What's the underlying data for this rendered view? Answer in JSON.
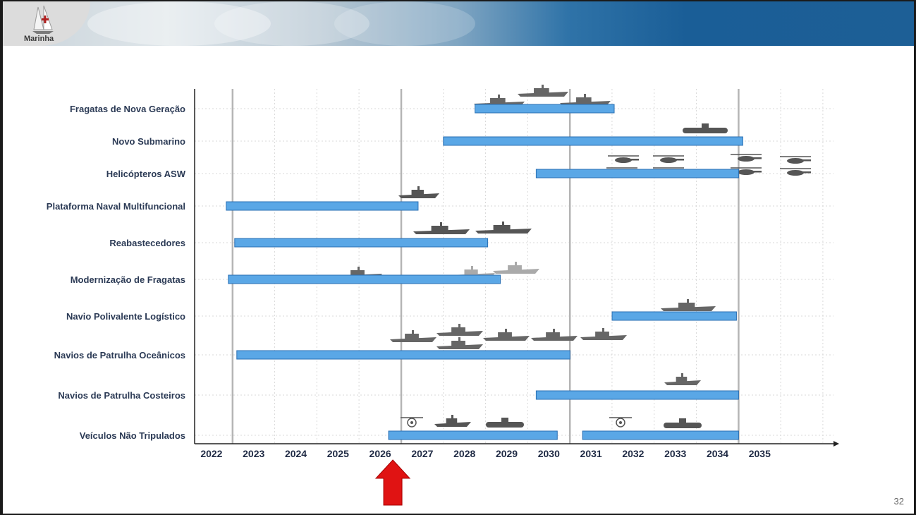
{
  "slide": {
    "logo_text": "Marinha",
    "page_number": "32"
  },
  "colors": {
    "bar": "#5aa7e6",
    "bar_border": "#2a6fb3",
    "arrow": "#e01313",
    "grid": "#d9d9d9",
    "separator": "#b5b5b5"
  },
  "chart_data": {
    "type": "gantt",
    "title": "",
    "xlabel": "",
    "ylabel": "",
    "x_ticks": [
      "2022",
      "2023",
      "2024",
      "2025",
      "2026",
      "2027",
      "2028",
      "2029",
      "2030",
      "2031",
      "2032",
      "2033",
      "2034",
      "2035"
    ],
    "xlim": [
      2022,
      2036
    ],
    "grid": true,
    "current_year_marker": 2026.3,
    "separators": [
      2022.5,
      2026.5,
      2030.5,
      2034.5
    ],
    "tasks": [
      {
        "label": "Fragatas de Nova Geração",
        "start": 2028.25,
        "end": 2031.55,
        "icon": "frigate-icon"
      },
      {
        "label": "Novo Submarino",
        "start": 2027.5,
        "end": 2034.6,
        "icon": "submarine-icon"
      },
      {
        "label": "Helicópteros ASW",
        "start": 2029.7,
        "end": 2034.5,
        "icon": "helicopter-icon"
      },
      {
        "label": "Plataforma Naval Multifuncional",
        "start": 2022.35,
        "end": 2026.9,
        "icon": "landing-ship-icon"
      },
      {
        "label": "Reabastecedores",
        "start": 2022.55,
        "end": 2028.55,
        "icon": "tanker-icon"
      },
      {
        "label": "Modernização de Fragatas",
        "start": 2022.4,
        "end": 2028.85,
        "icon": "frigate-icon"
      },
      {
        "label": "Navio Polivalente Logístico",
        "start": 2031.5,
        "end": 2034.45,
        "icon": "logistic-ship-icon"
      },
      {
        "label": "Navios de Patrulha Oceânicos",
        "start": 2022.6,
        "end": 2030.5,
        "icon": "patrol-ship-icon"
      },
      {
        "label": "Navios de Patrulha Costeiros",
        "start": 2029.7,
        "end": 2034.5,
        "icon": "coastal-patrol-icon"
      },
      {
        "label": "Veículos Não Tripulados",
        "start": 2026.2,
        "end": 2030.2,
        "start2": 2030.8,
        "end2": 2034.5,
        "icon": "drone-icon"
      }
    ]
  }
}
